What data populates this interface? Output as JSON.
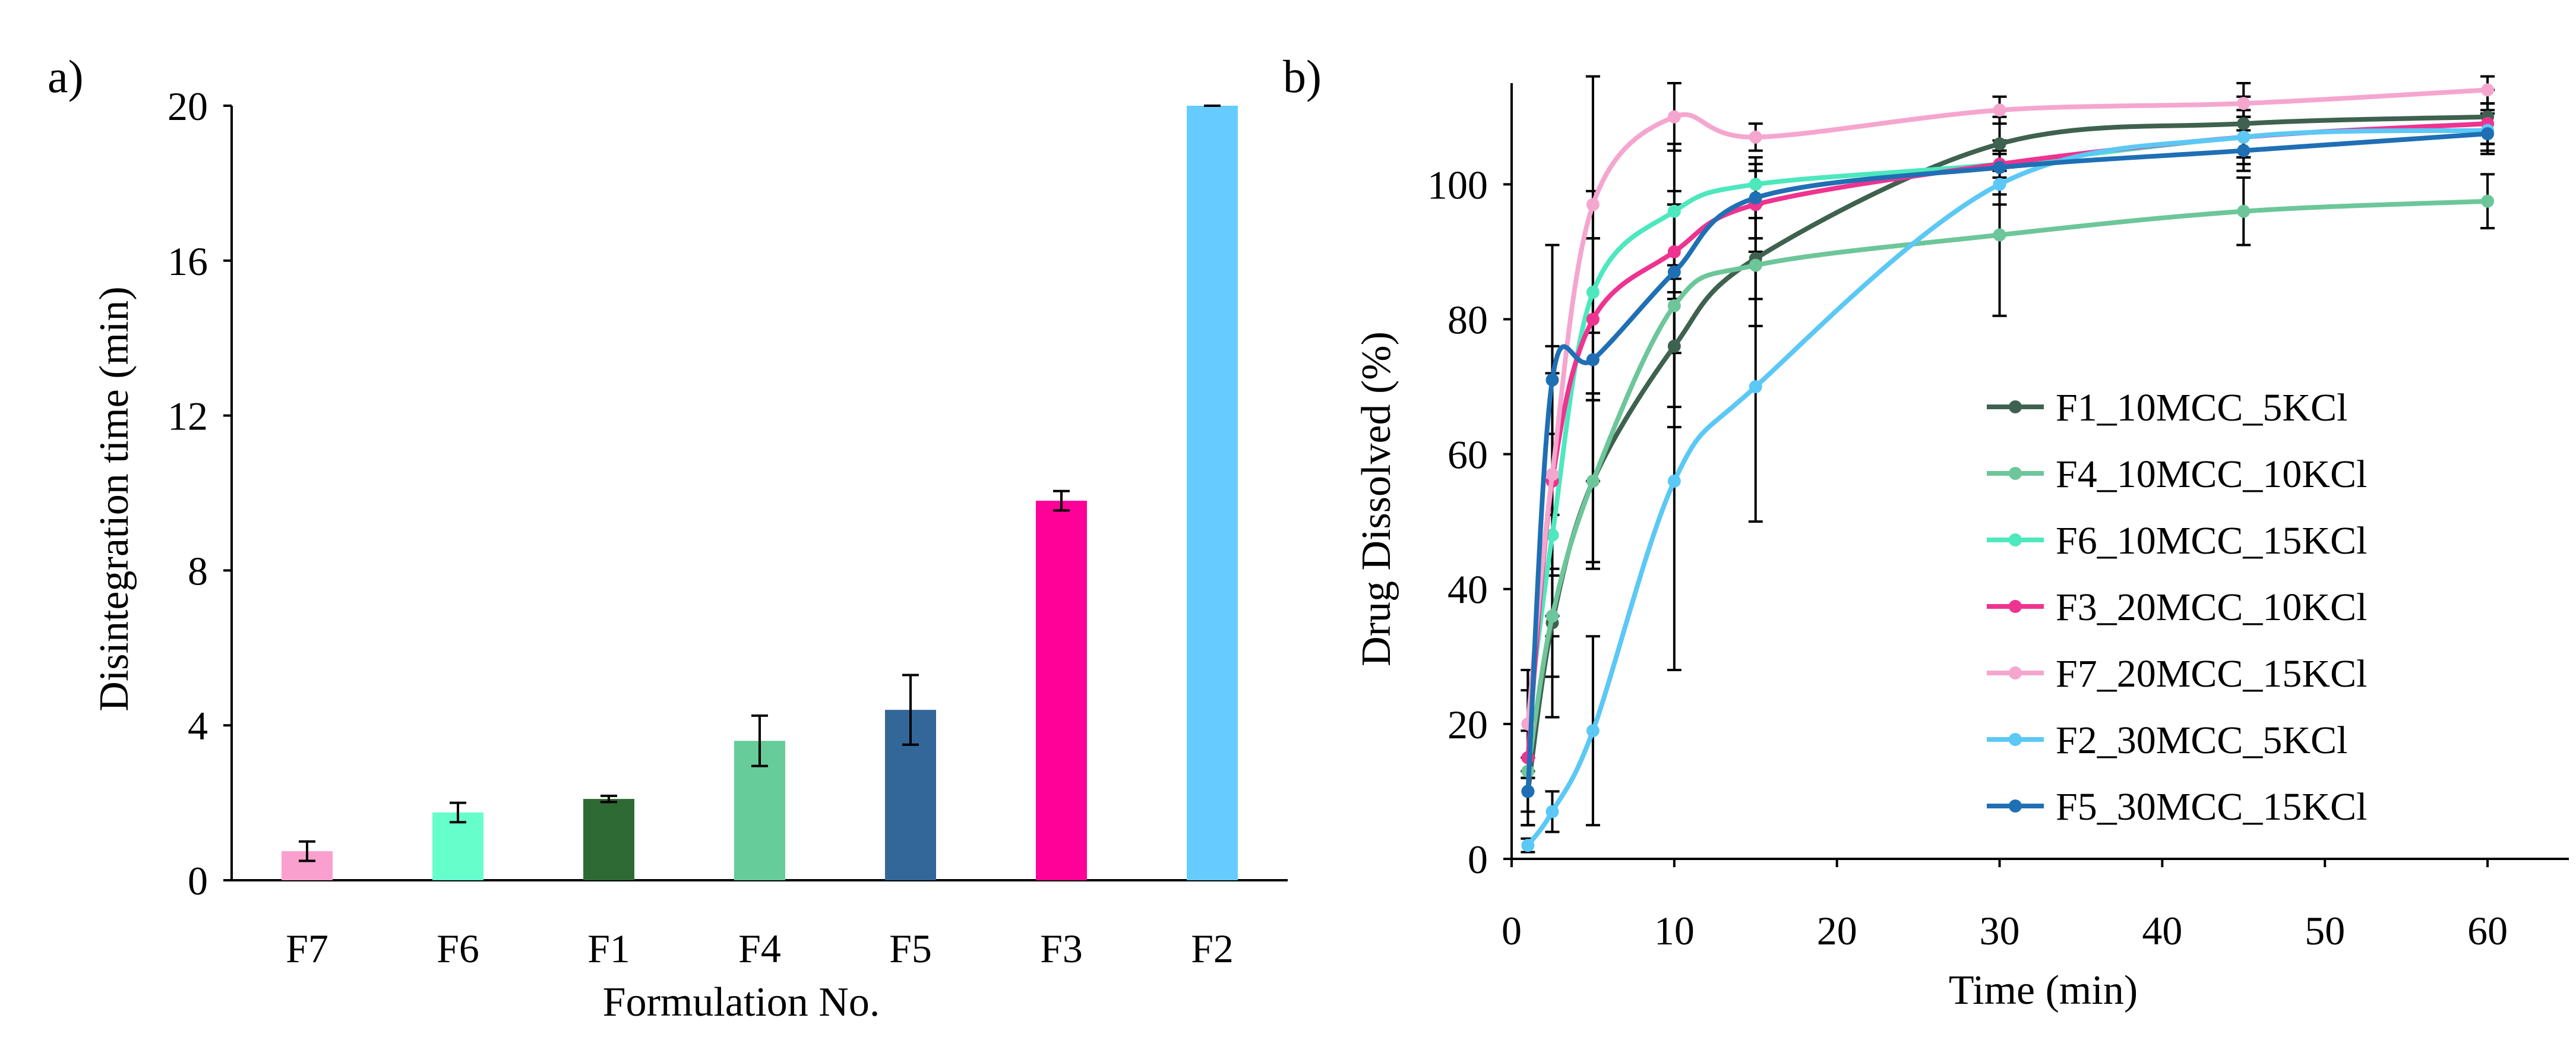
{
  "chart_data": [
    {
      "panel_label": "a)",
      "type": "bar",
      "title": "",
      "xlabel": "Formulation No.",
      "ylabel": "Disintegration time (min)",
      "ylim": [
        0,
        20
      ],
      "yticks": [
        0,
        4,
        8,
        12,
        16,
        20
      ],
      "categories": [
        "F7",
        "F6",
        "F1",
        "F4",
        "F5",
        "F3",
        "F2"
      ],
      "values": [
        0.75,
        1.75,
        2.1,
        3.6,
        4.4,
        9.8,
        20
      ],
      "errors": [
        0.25,
        0.25,
        0.08,
        0.65,
        0.9,
        0.25,
        0
      ],
      "colors": [
        "#f9a0cf",
        "#66ffcc",
        "#2e6b34",
        "#66cc99",
        "#336699",
        "#ff0099",
        "#66ccff"
      ]
    },
    {
      "panel_label": "b)",
      "type": "line",
      "title": "",
      "xlabel": "Time (min)",
      "ylabel": "Drug Dissolved (%)",
      "xlim": [
        0,
        65
      ],
      "ylim": [
        0,
        115
      ],
      "xticks": [
        0,
        10,
        20,
        30,
        40,
        50,
        60
      ],
      "yticks": [
        0,
        20,
        40,
        60,
        80,
        100
      ],
      "grid": false,
      "legend_position": "right",
      "x": [
        1,
        2.5,
        5,
        10,
        15,
        30,
        45,
        60
      ],
      "series": [
        {
          "name": "F1_10MCC_5KCl",
          "color": "#3f6150",
          "values": [
            10,
            35,
            56,
            76,
            89,
            106,
            109,
            110
          ],
          "errors": [
            3,
            8,
            12,
            12,
            6,
            4,
            4,
            4
          ]
        },
        {
          "name": "F4_10MCC_10KCl",
          "color": "#6dc69a",
          "values": [
            13,
            36,
            56,
            82,
            88,
            92.5,
            96,
            97.5
          ],
          "errors": [
            6,
            15,
            13,
            15,
            9,
            12,
            5,
            4
          ]
        },
        {
          "name": "F6_10MCC_15KCl",
          "color": "#4de8bd",
          "values": [
            20,
            48,
            84,
            96,
            100,
            103,
            107,
            109
          ],
          "errors": [
            8,
            15,
            15,
            10,
            3,
            2,
            3,
            3
          ]
        },
        {
          "name": "F3_20MCC_10KCl",
          "color": "#ee3390",
          "values": [
            15,
            56,
            80,
            90,
            97,
            103,
            107,
            109
          ],
          "errors": [
            10,
            20,
            12,
            7,
            5,
            2,
            3,
            3
          ]
        },
        {
          "name": "F7_20MCC_15KCl",
          "color": "#f5a6cf",
          "values": [
            20,
            57,
            97,
            110,
            107,
            111,
            112,
            114
          ],
          "errors": [
            8,
            15,
            19,
            5,
            2,
            2,
            3,
            2
          ]
        },
        {
          "name": "F2_30MCC_5KCl",
          "color": "#5bc8f5",
          "values": [
            2,
            7,
            19,
            56,
            70,
            100,
            107,
            108
          ],
          "errors": [
            1,
            3,
            14,
            28,
            20,
            3,
            4,
            3
          ]
        },
        {
          "name": "F5_30MCC_15KCl",
          "color": "#1f6fb5",
          "values": [
            10,
            71,
            74,
            87,
            98,
            102.5,
            105,
            107.5
          ],
          "errors": [
            5,
            20,
            18,
            12,
            6,
            4,
            3,
            3
          ]
        }
      ]
    }
  ]
}
